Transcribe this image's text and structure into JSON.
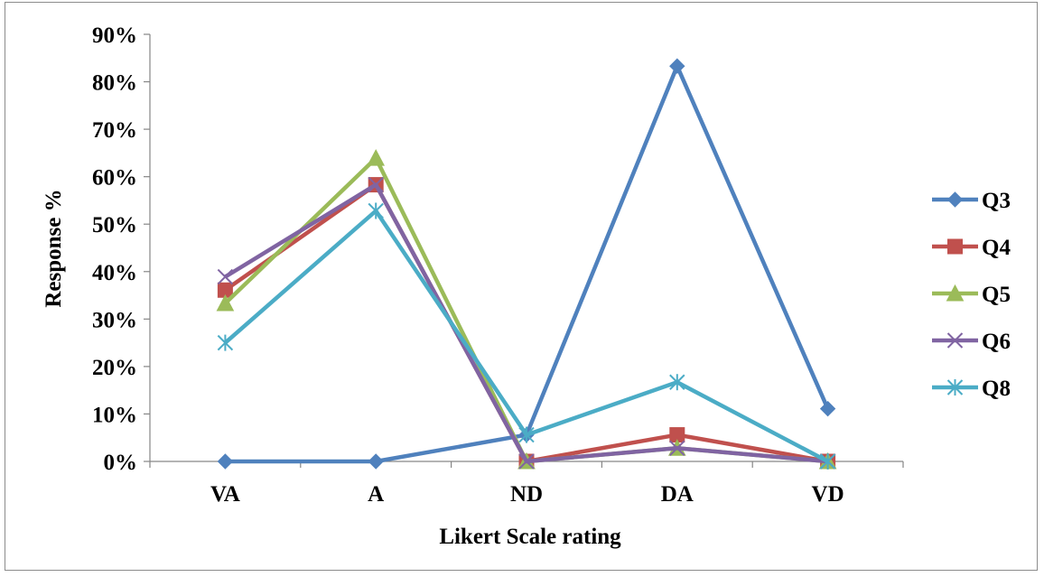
{
  "chart_data": {
    "type": "line",
    "categories": [
      "VA",
      "A",
      "ND",
      "DA",
      "VD"
    ],
    "series": [
      {
        "name": "Q3",
        "values": [
          0,
          0,
          5.6,
          83.3,
          11.1
        ],
        "color": "#4f81bd",
        "marker": "diamond"
      },
      {
        "name": "Q4",
        "values": [
          36.1,
          58.3,
          0,
          5.6,
          0
        ],
        "color": "#c0504d",
        "marker": "square"
      },
      {
        "name": "Q5",
        "values": [
          33.3,
          63.9,
          0,
          2.8,
          0
        ],
        "color": "#9bbb59",
        "marker": "triangle"
      },
      {
        "name": "Q6",
        "values": [
          38.9,
          58.3,
          0,
          2.8,
          0
        ],
        "color": "#8064a2",
        "marker": "x"
      },
      {
        "name": "Q8",
        "values": [
          25,
          52.8,
          5.6,
          16.7,
          0
        ],
        "color": "#4bacc6",
        "marker": "star"
      }
    ],
    "yticks": [
      "0%",
      "10%",
      "20%",
      "30%",
      "40%",
      "50%",
      "60%",
      "70%",
      "80%",
      "90%"
    ],
    "ylim": [
      0,
      90
    ],
    "xlabel": "Likert Scale rating",
    "ylabel": "Response %",
    "grid": false,
    "legend": "right"
  }
}
